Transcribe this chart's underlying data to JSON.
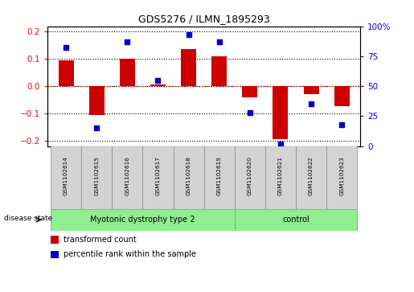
{
  "title": "GDS5276 / ILMN_1895293",
  "samples": [
    "GSM1102614",
    "GSM1102615",
    "GSM1102616",
    "GSM1102617",
    "GSM1102618",
    "GSM1102619",
    "GSM1102620",
    "GSM1102621",
    "GSM1102622",
    "GSM1102623"
  ],
  "transformed_count": [
    0.095,
    -0.105,
    0.1,
    0.005,
    0.135,
    0.11,
    -0.04,
    -0.195,
    -0.03,
    -0.075
  ],
  "percentile_rank": [
    82,
    15,
    87,
    55,
    93,
    87,
    28,
    2,
    35,
    18
  ],
  "groups": [
    {
      "label": "Myotonic dystrophy type 2",
      "start": 0,
      "end": 6,
      "color": "#90ee90"
    },
    {
      "label": "control",
      "start": 6,
      "end": 10,
      "color": "#90ee90"
    }
  ],
  "disease_state_label": "disease state",
  "ylim_left": [
    -0.22,
    0.22
  ],
  "ylim_right": [
    0,
    100
  ],
  "yticks_left": [
    -0.2,
    -0.1,
    0.0,
    0.1,
    0.2
  ],
  "yticks_right": [
    0,
    25,
    50,
    75,
    100
  ],
  "ytick_right_labels": [
    "0",
    "25",
    "50",
    "75",
    "100%"
  ],
  "bar_color": "#cc0000",
  "dot_color": "#0000cc",
  "zero_line_color": "#cc0000",
  "legend_bar_label": "transformed count",
  "legend_dot_label": "percentile rank within the sample",
  "background_color": "#ffffff",
  "plot_bg_color": "#ffffff",
  "cell_bg_color": "#d3d3d3",
  "group_border_color": "#888888",
  "bar_width": 0.5
}
